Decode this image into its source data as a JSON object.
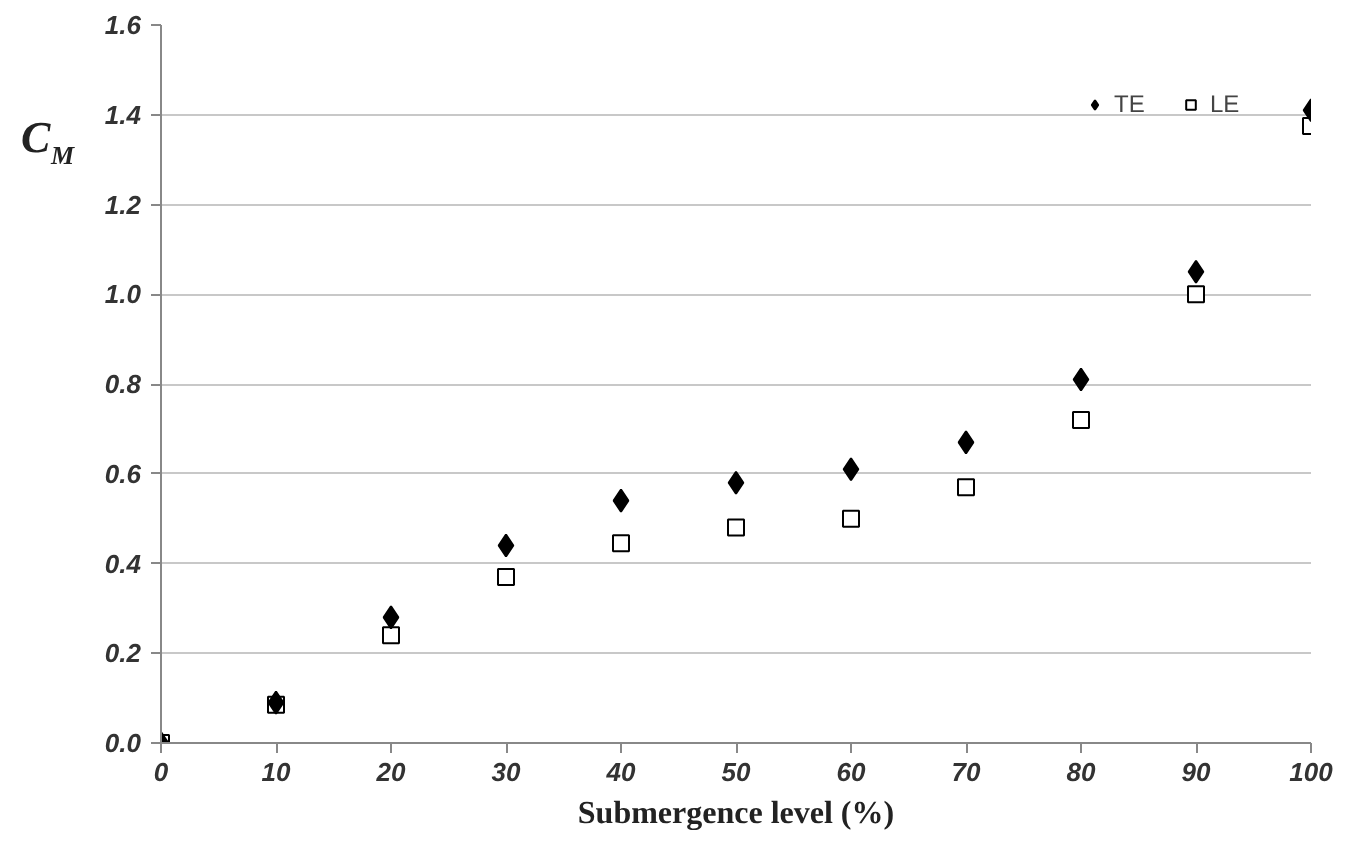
{
  "chart_data": {
    "type": "scatter",
    "xlabel": "Submergence level (%)",
    "ylabel": "C$_{M}$",
    "x": [
      0,
      10,
      20,
      30,
      40,
      50,
      60,
      70,
      80,
      90,
      100
    ],
    "series": [
      {
        "name": "TE",
        "color": "#000000",
        "marker": "diamond",
        "values": [
          0.0,
          0.09,
          0.28,
          0.44,
          0.54,
          0.58,
          0.61,
          0.67,
          0.81,
          1.05,
          1.41
        ]
      },
      {
        "name": "LE",
        "color": "#000000",
        "marker": "square",
        "values": [
          0.0,
          0.085,
          0.24,
          0.37,
          0.445,
          0.48,
          0.5,
          0.57,
          0.72,
          1.0,
          1.375
        ]
      }
    ],
    "xlim": [
      0,
      100
    ],
    "xticks": [
      0,
      10,
      20,
      30,
      40,
      50,
      60,
      70,
      80,
      90,
      100
    ],
    "ylim": [
      0,
      1.6
    ],
    "yticks": [
      {
        "value": 0,
        "label": "0.0"
      },
      0.2,
      0.4,
      0.6,
      0.8,
      {
        "value": 1,
        "label": "1.0"
      },
      1.2,
      1.4,
      1.6
    ],
    "grid": "y",
    "legend": "top right"
  }
}
